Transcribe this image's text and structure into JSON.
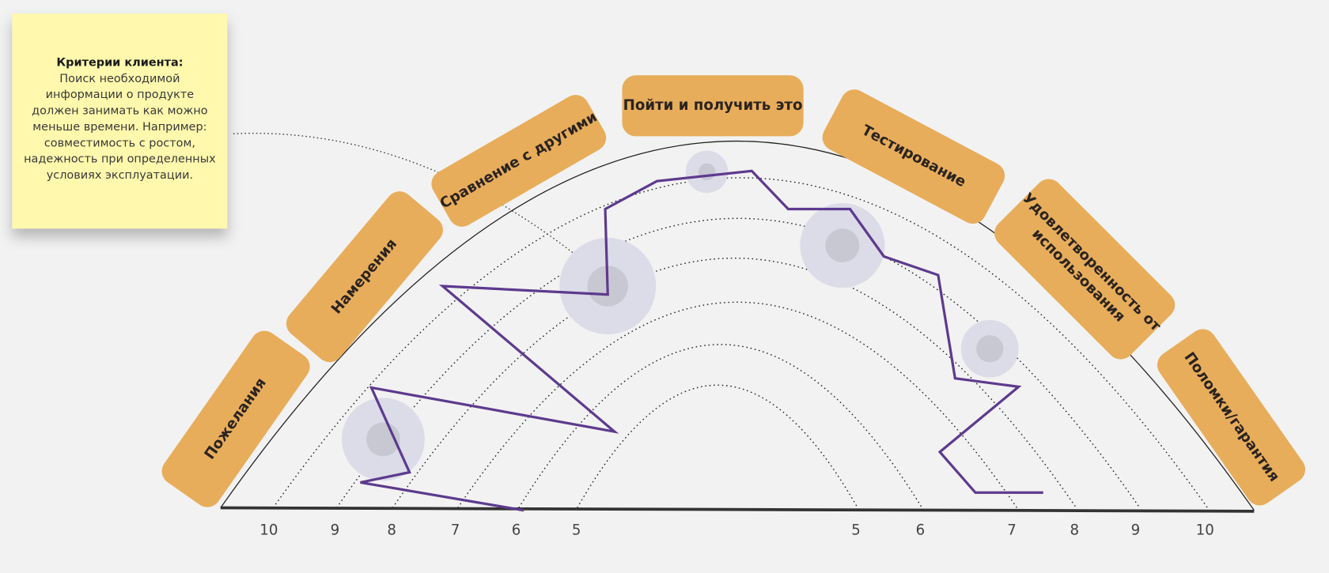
{
  "sticky_note": {
    "title": "Критерии клиента:",
    "lines": [
      "Поиск необходимой",
      "информации о продукте",
      "должен занимать как можно",
      "меньше времени. Например:",
      "совместимость с ростом,",
      "надежность при определенных",
      "условиях эксплуатации."
    ]
  },
  "stages": [
    {
      "lines": [
        "Пожелания"
      ]
    },
    {
      "lines": [
        "Намерения"
      ]
    },
    {
      "lines": [
        "Сравнение с другими"
      ]
    },
    {
      "lines": [
        "Пойти и получить это"
      ]
    },
    {
      "lines": [
        "Тестирование"
      ]
    },
    {
      "lines": [
        "Удовлетворенность от",
        "использования"
      ]
    },
    {
      "lines": [
        "Поломки/гарантия"
      ]
    }
  ],
  "scale_left": [
    10,
    9,
    8,
    7,
    6,
    5
  ],
  "scale_right": [
    5,
    6,
    7,
    8,
    9,
    10
  ]
}
